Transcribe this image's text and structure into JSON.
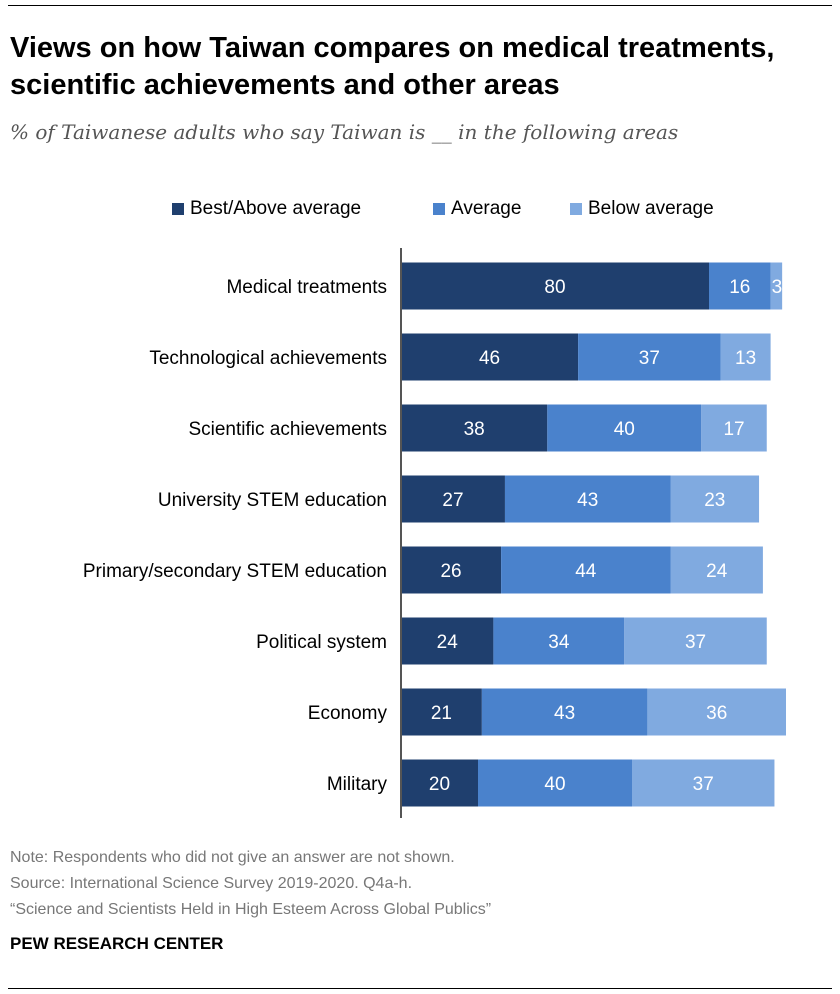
{
  "title": "Views on how Taiwan compares on medical treatments, scientific achievements and other areas",
  "subtitle": "% of Taiwanese adults who say Taiwan is __ in the following areas",
  "notes": [
    "Note: Respondents who did not give an answer are not shown.",
    "Source: International Science Survey 2019-2020. Q4a-h.",
    "“Science and Scientists Held in High Esteem Across Global Publics”"
  ],
  "brand": "PEW RESEARCH CENTER",
  "colors": {
    "best": "#1f3f6e",
    "average": "#4a82cc",
    "below": "#80aae0"
  },
  "chart_data": {
    "type": "bar",
    "orientation": "horizontal-stacked",
    "title": "Views on how Taiwan compares on medical treatments, scientific achievements and other areas",
    "categories": [
      "Medical treatments",
      "Technological achievements",
      "Scientific achievements",
      "University STEM education",
      "Primary/secondary STEM education",
      "Political system",
      "Economy",
      "Military"
    ],
    "series": [
      {
        "name": "Best/Above average",
        "values": [
          80,
          46,
          38,
          27,
          26,
          24,
          21,
          20
        ]
      },
      {
        "name": "Average",
        "values": [
          16,
          37,
          40,
          43,
          44,
          34,
          43,
          40
        ]
      },
      {
        "name": "Below average",
        "values": [
          3,
          13,
          17,
          23,
          24,
          37,
          36,
          37
        ]
      }
    ],
    "xlim": [
      0,
      100
    ],
    "legend": "top",
    "grid": false
  }
}
